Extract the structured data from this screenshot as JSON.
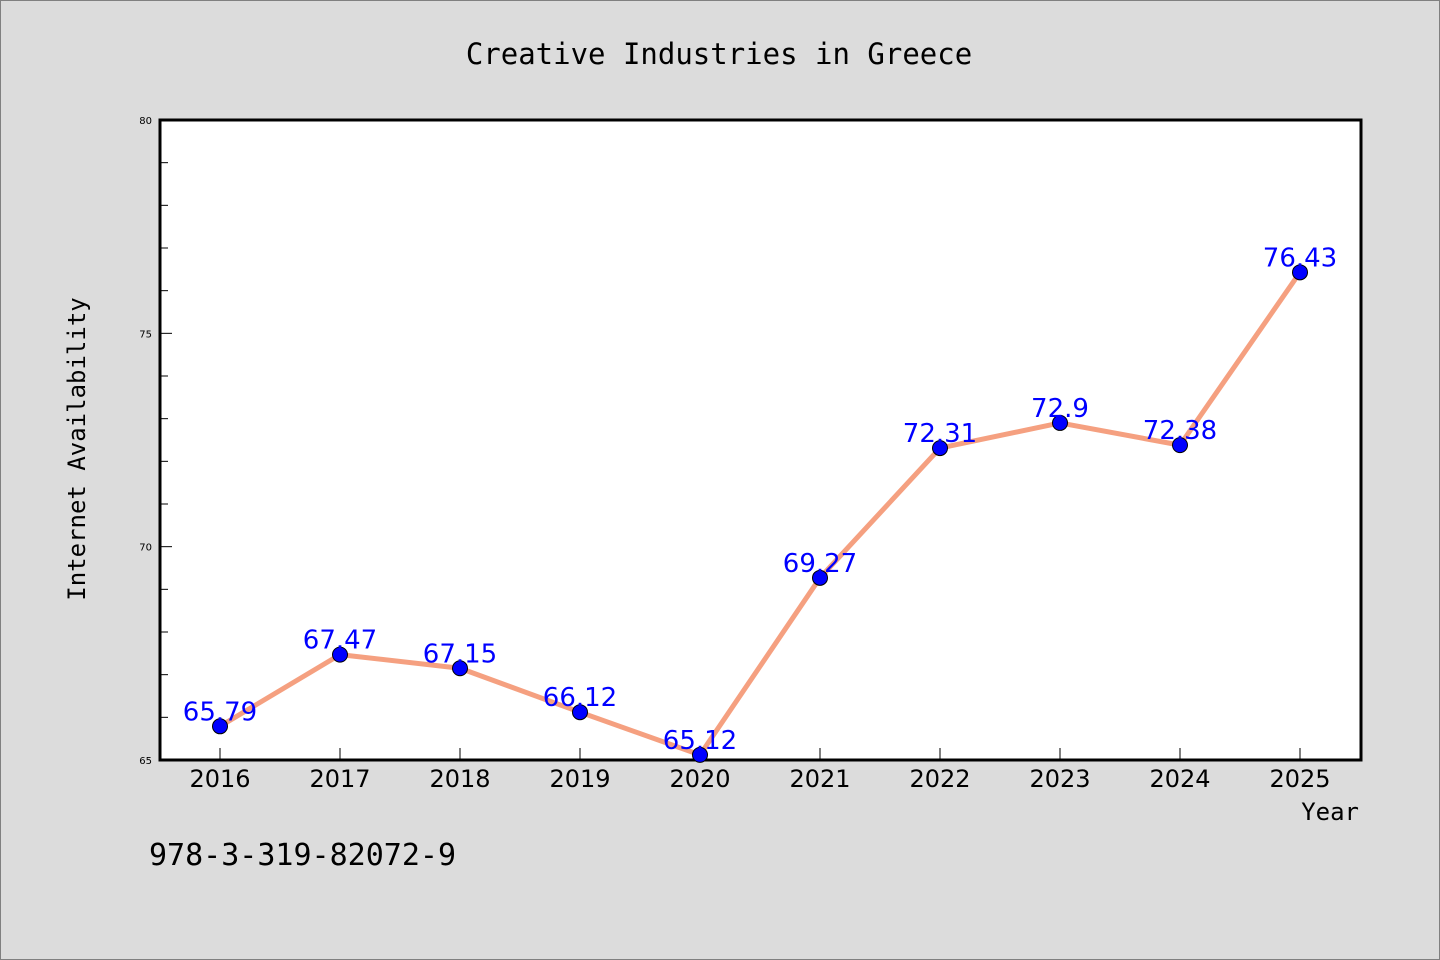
{
  "chart_data": {
    "type": "line",
    "title": "Creative Industries in Greece",
    "xlabel": "Year",
    "ylabel": "Internet Availability",
    "x": [
      "2016",
      "2017",
      "2018",
      "2019",
      "2020",
      "2021",
      "2022",
      "2023",
      "2024",
      "2025"
    ],
    "series": [
      {
        "values": [
          65.79,
          67.47,
          67.15,
          66.12,
          65.12,
          69.27,
          72.31,
          72.9,
          72.38,
          76.43
        ],
        "labels": [
          "65.79",
          "67.47",
          "67.15",
          "66.12",
          "65.12",
          "69.27",
          "72.31",
          "72.9",
          "72.38",
          "76.43"
        ]
      }
    ],
    "ylim": [
      65,
      80
    ],
    "yticks": [
      "65",
      "70",
      "75",
      "80"
    ],
    "grid": false,
    "legend": "none",
    "colors": {
      "line": "#f5a080",
      "marker": "#0000ff",
      "data_label": "#0000ff",
      "background": "#dcdcdc",
      "plot_background": "#ffffff"
    }
  },
  "caption": "978-3-319-82072-9"
}
